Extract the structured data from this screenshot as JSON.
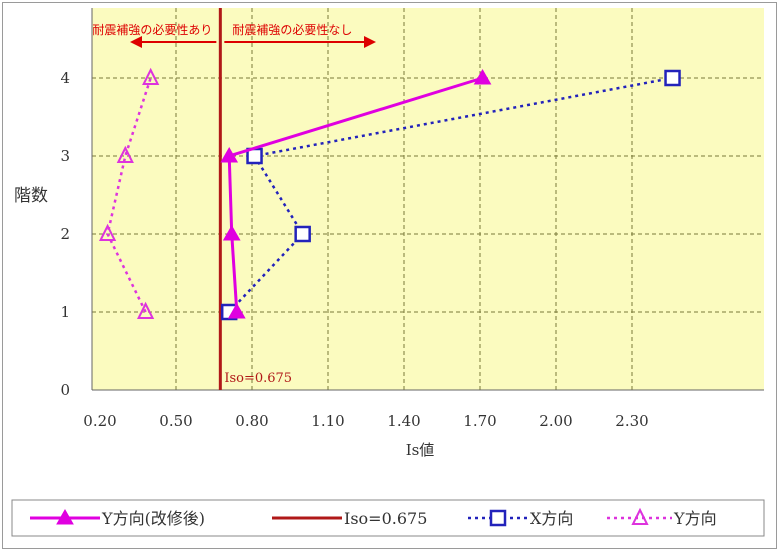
{
  "chart_data": {
    "type": "line",
    "title": "",
    "xlabel": "Is値",
    "ylabel": "階数",
    "xlim": [
      0.2,
      2.5
    ],
    "ylim": [
      0,
      4.5
    ],
    "x_ticks": [
      "0.20",
      "0.50",
      "0.80",
      "1.10",
      "1.40",
      "1.70",
      "2.00",
      "2.30"
    ],
    "y_ticks": [
      "0",
      "1",
      "2",
      "3",
      "4"
    ],
    "grid": true,
    "background_color": "#fbfbbf",
    "series": [
      {
        "name": "Y方向(改修後)",
        "style": "solid",
        "marker": "filled-triangle",
        "color": "#e000e0",
        "points": [
          [
            0.74,
            1
          ],
          [
            0.72,
            2
          ],
          [
            0.71,
            3
          ],
          [
            1.71,
            4
          ]
        ]
      },
      {
        "name": "X方向",
        "style": "dotted",
        "marker": "open-square",
        "color": "#2222bb",
        "points": [
          [
            0.71,
            1
          ],
          [
            1.0,
            2
          ],
          [
            0.81,
            3
          ],
          [
            2.46,
            4
          ]
        ]
      },
      {
        "name": "Y方向",
        "style": "dotted",
        "marker": "open-triangle",
        "color": "#dd33dd",
        "points": [
          [
            0.38,
            1
          ],
          [
            0.23,
            2
          ],
          [
            0.3,
            3
          ],
          [
            0.4,
            4
          ]
        ]
      }
    ],
    "reference_line": {
      "name": "Iso=0.675",
      "value": 0.675,
      "label": "Iso=0.675",
      "color": "#b01818"
    },
    "annotations": {
      "left": "耐震補強の必要性あり",
      "right": "耐震補強の必要性なし",
      "color": "#dd0000"
    },
    "legend": {
      "position": "bottom",
      "items": [
        "Y方向(改修後)",
        "Iso=0.675",
        "X方向",
        "Y方向"
      ]
    }
  }
}
